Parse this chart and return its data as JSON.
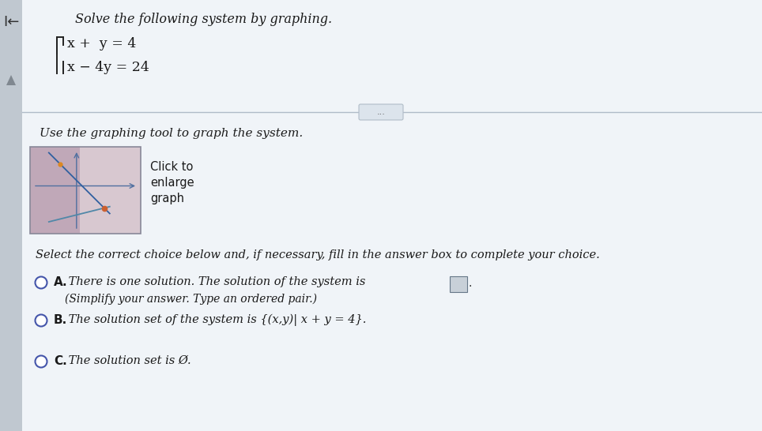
{
  "title": "Solve the following system by graphing.",
  "eq1": "x +  y = 4",
  "eq2": "x − 4y = 24",
  "graphing_label": "Use the graphing tool to graph the system.",
  "click_text_1": "Click to",
  "click_text_2": "enlarge",
  "click_text_3": "graph",
  "divider_dots": "...",
  "select_text": "Select the correct choice below and, if necessary, fill in the answer box to complete your choice.",
  "choice_a_bold": "A.",
  "choice_a_text": " There is one solution. The solution of the system is",
  "choice_a_sub": "(Simplify your answer. Type an ordered pair.)",
  "choice_b_bold": "B.",
  "choice_b_text": " The solution set of the system is {(x,y)| x + y = 4}.",
  "choice_c_bold": "C.",
  "choice_c_text": " The solution set is Ø.",
  "bg_main": "#e8eef4",
  "bg_sidebar": "#c0c8d0",
  "bg_graph_thumb": "#d4ccd8",
  "bg_graph_right": "#e8dce8",
  "line_color_1": "#7090c0",
  "line_color_2": "#8090a0",
  "dot_color": "#cc6030",
  "text_dark": "#1a1a1a",
  "divider_color": "#b0bcc8",
  "answer_box_color": "#c8d0d8"
}
